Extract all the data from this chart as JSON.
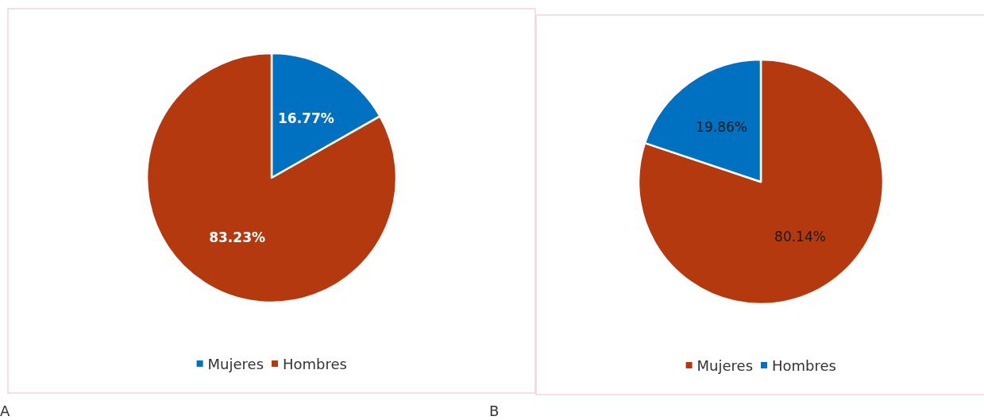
{
  "chart_data": [
    {
      "type": "pie",
      "categories": [
        "Mujeres",
        "Hombres"
      ],
      "values": [
        16.77,
        83.23
      ],
      "colors": [
        "#0070c0",
        "#b5390e"
      ],
      "value_labels": [
        "16.77%",
        "83.23%"
      ],
      "legend": "bottom",
      "annotations": [
        "A"
      ]
    },
    {
      "type": "pie",
      "categories": [
        "Mujeres",
        "Hombres"
      ],
      "values": [
        80.14,
        19.86
      ],
      "colors": [
        "#b5390e",
        "#0070c0"
      ],
      "value_labels": [
        "80.14%",
        "19.86%"
      ],
      "legend": "bottom",
      "annotations": [
        "B"
      ]
    }
  ]
}
